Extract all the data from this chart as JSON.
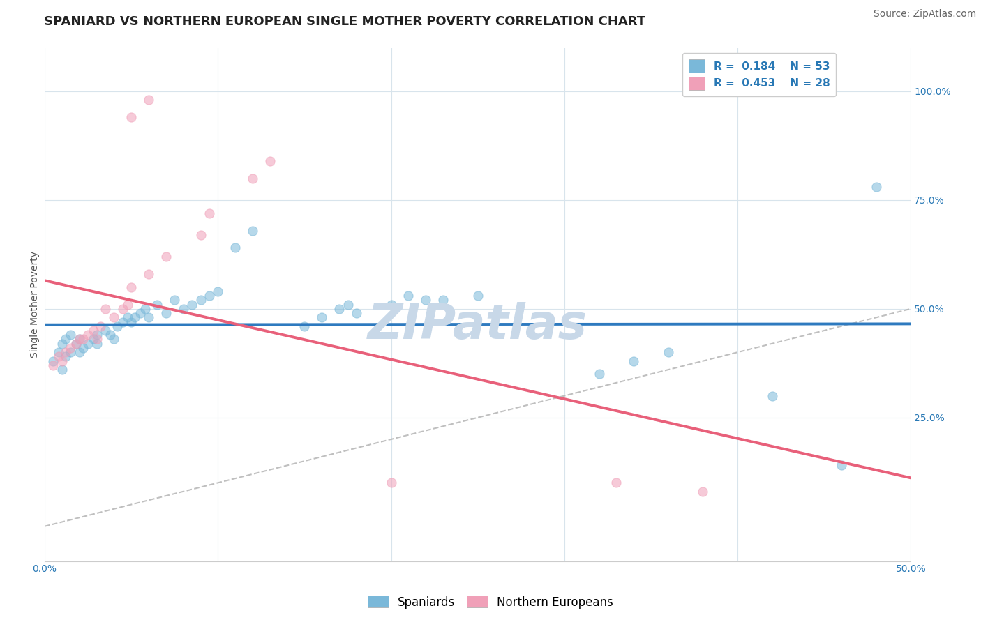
{
  "title": "SPANIARD VS NORTHERN EUROPEAN SINGLE MOTHER POVERTY CORRELATION CHART",
  "source": "Source: ZipAtlas.com",
  "xlabel": "",
  "ylabel": "Single Mother Poverty",
  "xlim": [
    0.0,
    0.5
  ],
  "ylim": [
    -0.08,
    1.1
  ],
  "xticks": [
    0.0,
    0.1,
    0.2,
    0.3,
    0.4,
    0.5
  ],
  "xtick_labels": [
    "0.0%",
    "",
    "",
    "",
    "",
    "50.0%"
  ],
  "ytick_labels_right": [
    "25.0%",
    "50.0%",
    "75.0%",
    "100.0%"
  ],
  "ytick_positions_right": [
    0.25,
    0.5,
    0.75,
    1.0
  ],
  "legend_labels": [
    "Spaniards",
    "Northern Europeans"
  ],
  "r_spaniards": 0.184,
  "n_spaniards": 53,
  "r_northern": 0.453,
  "n_northern": 28,
  "blue_color": "#7ab8d9",
  "pink_color": "#f0a0b8",
  "blue_line_color": "#2e7abf",
  "pink_line_color": "#e8607a",
  "grid_color": "#d8e4ec",
  "watermark": "ZIPatlas",
  "watermark_color": "#c8d8e8",
  "blue_dots": [
    [
      0.005,
      0.38
    ],
    [
      0.008,
      0.4
    ],
    [
      0.01,
      0.36
    ],
    [
      0.012,
      0.39
    ],
    [
      0.015,
      0.4
    ],
    [
      0.01,
      0.42
    ],
    [
      0.012,
      0.43
    ],
    [
      0.015,
      0.44
    ],
    [
      0.018,
      0.42
    ],
    [
      0.02,
      0.43
    ],
    [
      0.02,
      0.4
    ],
    [
      0.022,
      0.41
    ],
    [
      0.025,
      0.42
    ],
    [
      0.028,
      0.43
    ],
    [
      0.03,
      0.44
    ],
    [
      0.03,
      0.42
    ],
    [
      0.035,
      0.45
    ],
    [
      0.038,
      0.44
    ],
    [
      0.04,
      0.43
    ],
    [
      0.042,
      0.46
    ],
    [
      0.045,
      0.47
    ],
    [
      0.048,
      0.48
    ],
    [
      0.05,
      0.47
    ],
    [
      0.052,
      0.48
    ],
    [
      0.055,
      0.49
    ],
    [
      0.058,
      0.5
    ],
    [
      0.06,
      0.48
    ],
    [
      0.065,
      0.51
    ],
    [
      0.07,
      0.49
    ],
    [
      0.075,
      0.52
    ],
    [
      0.08,
      0.5
    ],
    [
      0.085,
      0.51
    ],
    [
      0.09,
      0.52
    ],
    [
      0.095,
      0.53
    ],
    [
      0.1,
      0.54
    ],
    [
      0.11,
      0.64
    ],
    [
      0.12,
      0.68
    ],
    [
      0.15,
      0.46
    ],
    [
      0.16,
      0.48
    ],
    [
      0.17,
      0.5
    ],
    [
      0.175,
      0.51
    ],
    [
      0.18,
      0.49
    ],
    [
      0.2,
      0.51
    ],
    [
      0.21,
      0.53
    ],
    [
      0.22,
      0.52
    ],
    [
      0.23,
      0.52
    ],
    [
      0.25,
      0.53
    ],
    [
      0.32,
      0.35
    ],
    [
      0.34,
      0.38
    ],
    [
      0.36,
      0.4
    ],
    [
      0.42,
      0.3
    ],
    [
      0.46,
      0.14
    ],
    [
      0.48,
      0.78
    ]
  ],
  "pink_dots": [
    [
      0.005,
      0.37
    ],
    [
      0.008,
      0.39
    ],
    [
      0.01,
      0.38
    ],
    [
      0.012,
      0.4
    ],
    [
      0.015,
      0.41
    ],
    [
      0.018,
      0.42
    ],
    [
      0.02,
      0.43
    ],
    [
      0.022,
      0.43
    ],
    [
      0.025,
      0.44
    ],
    [
      0.028,
      0.45
    ],
    [
      0.03,
      0.43
    ],
    [
      0.032,
      0.46
    ],
    [
      0.035,
      0.5
    ],
    [
      0.04,
      0.48
    ],
    [
      0.045,
      0.5
    ],
    [
      0.048,
      0.51
    ],
    [
      0.05,
      0.55
    ],
    [
      0.06,
      0.58
    ],
    [
      0.07,
      0.62
    ],
    [
      0.09,
      0.67
    ],
    [
      0.095,
      0.72
    ],
    [
      0.12,
      0.8
    ],
    [
      0.13,
      0.84
    ],
    [
      0.05,
      0.94
    ],
    [
      0.06,
      0.98
    ],
    [
      0.2,
      0.1
    ],
    [
      0.33,
      0.1
    ],
    [
      0.38,
      0.08
    ]
  ],
  "title_fontsize": 13,
  "source_fontsize": 10,
  "axis_label_fontsize": 10,
  "tick_fontsize": 10,
  "legend_fontsize": 11,
  "dot_size": 90,
  "dot_alpha": 0.55,
  "dot_linewidth": 0.8
}
